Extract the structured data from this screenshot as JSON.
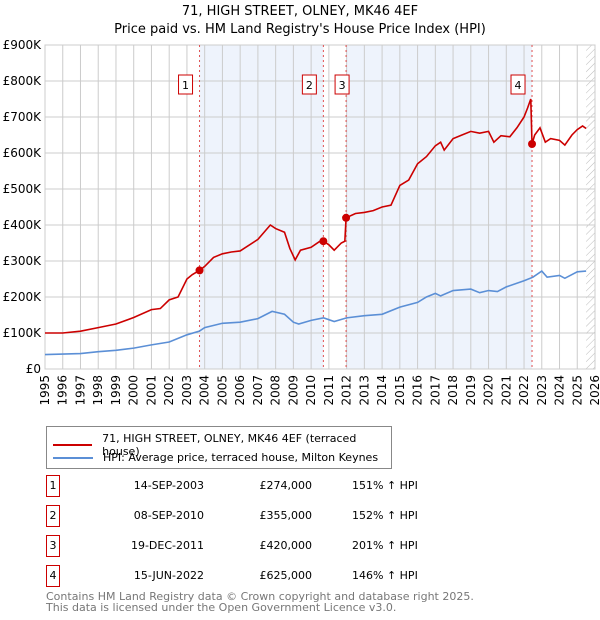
{
  "chart_data": {
    "type": "line",
    "title": "71, HIGH STREET, OLNEY, MK46 4EF",
    "subtitle": "Price paid vs. HM Land Registry's House Price Index (HPI)",
    "xlim": [
      1995,
      2026
    ],
    "ylim": [
      0,
      900000
    ],
    "x_ticks": [
      "1995",
      "1996",
      "1997",
      "1998",
      "1999",
      "2000",
      "2001",
      "2002",
      "2003",
      "2004",
      "2005",
      "2006",
      "2007",
      "2008",
      "2009",
      "2010",
      "2011",
      "2012",
      "2013",
      "2014",
      "2015",
      "2016",
      "2017",
      "2018",
      "2019",
      "2020",
      "2021",
      "2022",
      "2023",
      "2024",
      "2025",
      "2026"
    ],
    "y_ticks": [
      {
        "v": 0,
        "label": "£0"
      },
      {
        "v": 100000,
        "label": "£100K"
      },
      {
        "v": 200000,
        "label": "£200K"
      },
      {
        "v": 300000,
        "label": "£300K"
      },
      {
        "v": 400000,
        "label": "£400K"
      },
      {
        "v": 500000,
        "label": "£500K"
      },
      {
        "v": 600000,
        "label": "£600K"
      },
      {
        "v": 700000,
        "label": "£700K"
      },
      {
        "v": 800000,
        "label": "£800K"
      },
      {
        "v": 900000,
        "label": "£900K"
      }
    ],
    "grid": true,
    "legend_placement": "below",
    "shaded_ranges": [
      [
        2003.71,
        2010.69
      ],
      [
        2011.97,
        2022.45
      ]
    ],
    "hatched_from": 2025.5,
    "series": [
      {
        "name": "71, HIGH STREET, OLNEY, MK46 4EF (terraced house)",
        "color": "#cc0000",
        "points": [
          [
            1995,
            100
          ],
          [
            1996,
            100
          ],
          [
            1997,
            105
          ],
          [
            1998,
            115
          ],
          [
            1999,
            125
          ],
          [
            2000,
            143
          ],
          [
            2001,
            165
          ],
          [
            2001.5,
            168
          ],
          [
            2002,
            192
          ],
          [
            2002.5,
            200
          ],
          [
            2003,
            250
          ],
          [
            2003.3,
            262
          ],
          [
            2003.71,
            274
          ],
          [
            2004,
            285
          ],
          [
            2004.5,
            310
          ],
          [
            2005,
            320
          ],
          [
            2005.5,
            325
          ],
          [
            2006,
            328
          ],
          [
            2007,
            360
          ],
          [
            2007.7,
            400
          ],
          [
            2008,
            390
          ],
          [
            2008.5,
            380
          ],
          [
            2008.8,
            335
          ],
          [
            2009.1,
            303
          ],
          [
            2009.4,
            330
          ],
          [
            2010,
            338
          ],
          [
            2010.5,
            355
          ],
          [
            2010.69,
            355
          ],
          [
            2011,
            345
          ],
          [
            2011.3,
            330
          ],
          [
            2011.7,
            350
          ],
          [
            2011.9,
            355
          ],
          [
            2011.97,
            420
          ],
          [
            2012.5,
            432
          ],
          [
            2013,
            435
          ],
          [
            2013.5,
            440
          ],
          [
            2014,
            450
          ],
          [
            2014.5,
            455
          ],
          [
            2015,
            510
          ],
          [
            2015.5,
            525
          ],
          [
            2016,
            570
          ],
          [
            2016.5,
            590
          ],
          [
            2017,
            620
          ],
          [
            2017.3,
            630
          ],
          [
            2017.5,
            608
          ],
          [
            2018,
            640
          ],
          [
            2018.5,
            650
          ],
          [
            2019,
            660
          ],
          [
            2019.5,
            655
          ],
          [
            2020,
            660
          ],
          [
            2020.3,
            630
          ],
          [
            2020.7,
            648
          ],
          [
            2021.2,
            645
          ],
          [
            2021.6,
            670
          ],
          [
            2022,
            700
          ],
          [
            2022.2,
            725
          ],
          [
            2022.38,
            750
          ],
          [
            2022.45,
            625
          ],
          [
            2022.6,
            650
          ],
          [
            2022.9,
            670
          ],
          [
            2023.2,
            630
          ],
          [
            2023.5,
            640
          ],
          [
            2024,
            635
          ],
          [
            2024.3,
            622
          ],
          [
            2024.7,
            650
          ],
          [
            2025,
            665
          ],
          [
            2025.3,
            675
          ],
          [
            2025.5,
            668
          ]
        ]
      },
      {
        "name": "HPI: Average price, terraced house, Milton Keynes",
        "color": "#5b8fd6",
        "points": [
          [
            1995,
            40
          ],
          [
            1997,
            43
          ],
          [
            1998,
            48
          ],
          [
            1999,
            52
          ],
          [
            2000,
            58
          ],
          [
            2001,
            67
          ],
          [
            2002,
            75
          ],
          [
            2003,
            95
          ],
          [
            2003.7,
            105
          ],
          [
            2004,
            115
          ],
          [
            2005,
            127
          ],
          [
            2006,
            130
          ],
          [
            2007,
            140
          ],
          [
            2007.8,
            160
          ],
          [
            2008.5,
            152
          ],
          [
            2009,
            130
          ],
          [
            2009.3,
            125
          ],
          [
            2010,
            135
          ],
          [
            2010.7,
            142
          ],
          [
            2011.3,
            132
          ],
          [
            2012,
            142
          ],
          [
            2013,
            148
          ],
          [
            2014,
            152
          ],
          [
            2015,
            172
          ],
          [
            2016,
            185
          ],
          [
            2016.5,
            200
          ],
          [
            2017,
            210
          ],
          [
            2017.3,
            203
          ],
          [
            2018,
            218
          ],
          [
            2019,
            222
          ],
          [
            2019.5,
            212
          ],
          [
            2020,
            218
          ],
          [
            2020.5,
            215
          ],
          [
            2021,
            228
          ],
          [
            2022,
            245
          ],
          [
            2022.5,
            255
          ],
          [
            2023,
            272
          ],
          [
            2023.3,
            255
          ],
          [
            2024,
            260
          ],
          [
            2024.3,
            252
          ],
          [
            2025,
            270
          ],
          [
            2025.5,
            272
          ]
        ]
      }
    ],
    "sales": [
      {
        "id": "1",
        "x": 2003.71,
        "price": 274000
      },
      {
        "id": "2",
        "x": 2010.69,
        "price": 355000
      },
      {
        "id": "3",
        "x": 2011.97,
        "price": 420000
      },
      {
        "id": "4",
        "x": 2022.45,
        "price": 625000
      }
    ]
  },
  "legend": {
    "property": "71, HIGH STREET, OLNEY, MK46 4EF (terraced house)",
    "hpi": "HPI: Average price, terraced house, Milton Keynes"
  },
  "transactions": [
    {
      "id": "1",
      "date": "14-SEP-2003",
      "price": "£274,000",
      "hpi": "151% ↑ HPI"
    },
    {
      "id": "2",
      "date": "08-SEP-2010",
      "price": "£355,000",
      "hpi": "152% ↑ HPI"
    },
    {
      "id": "3",
      "date": "19-DEC-2011",
      "price": "£420,000",
      "hpi": "201% ↑ HPI"
    },
    {
      "id": "4",
      "date": "15-JUN-2022",
      "price": "£625,000",
      "hpi": "146% ↑ HPI"
    }
  ],
  "footer": {
    "line1": "Contains HM Land Registry data © Crown copyright and database right 2025.",
    "line2": "This data is licensed under the Open Government Licence v3.0."
  },
  "colors": {
    "property": "#cc0000",
    "hpi": "#5b8fd6",
    "shade": "#eef3fc"
  }
}
